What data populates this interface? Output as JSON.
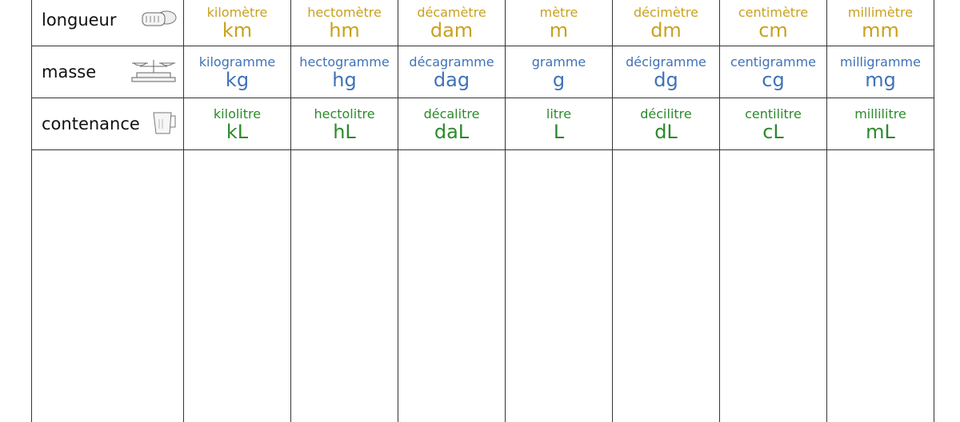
{
  "colors": {
    "longueur": "#c9a11e",
    "masse": "#3f72b8",
    "contenance": "#2b8a2b"
  },
  "rows": [
    {
      "label": "longueur",
      "icon": "measuring-tape-icon",
      "units": [
        {
          "name": "kilomètre",
          "symbol": "km"
        },
        {
          "name": "hectomètre",
          "symbol": "hm"
        },
        {
          "name": "décamètre",
          "symbol": "dam"
        },
        {
          "name": "mètre",
          "symbol": "m"
        },
        {
          "name": "décimètre",
          "symbol": "dm"
        },
        {
          "name": "centimètre",
          "symbol": "cm"
        },
        {
          "name": "millimètre",
          "symbol": "mm"
        }
      ]
    },
    {
      "label": "masse",
      "icon": "balance-scale-icon",
      "units": [
        {
          "name": "kilogramme",
          "symbol": "kg"
        },
        {
          "name": "hectogramme",
          "symbol": "hg"
        },
        {
          "name": "décagramme",
          "symbol": "dag"
        },
        {
          "name": "gramme",
          "symbol": "g"
        },
        {
          "name": "décigramme",
          "symbol": "dg"
        },
        {
          "name": "centigramme",
          "symbol": "cg"
        },
        {
          "name": "milligramme",
          "symbol": "mg"
        }
      ]
    },
    {
      "label": "contenance",
      "icon": "measuring-jug-icon",
      "units": [
        {
          "name": "kilolitre",
          "symbol": "kL"
        },
        {
          "name": "hectolitre",
          "symbol": "hL"
        },
        {
          "name": "décalitre",
          "symbol": "daL"
        },
        {
          "name": "litre",
          "symbol": "L"
        },
        {
          "name": "décilitre",
          "symbol": "dL"
        },
        {
          "name": "centilitre",
          "symbol": "cL"
        },
        {
          "name": "millilitre",
          "symbol": "mL"
        }
      ]
    }
  ]
}
